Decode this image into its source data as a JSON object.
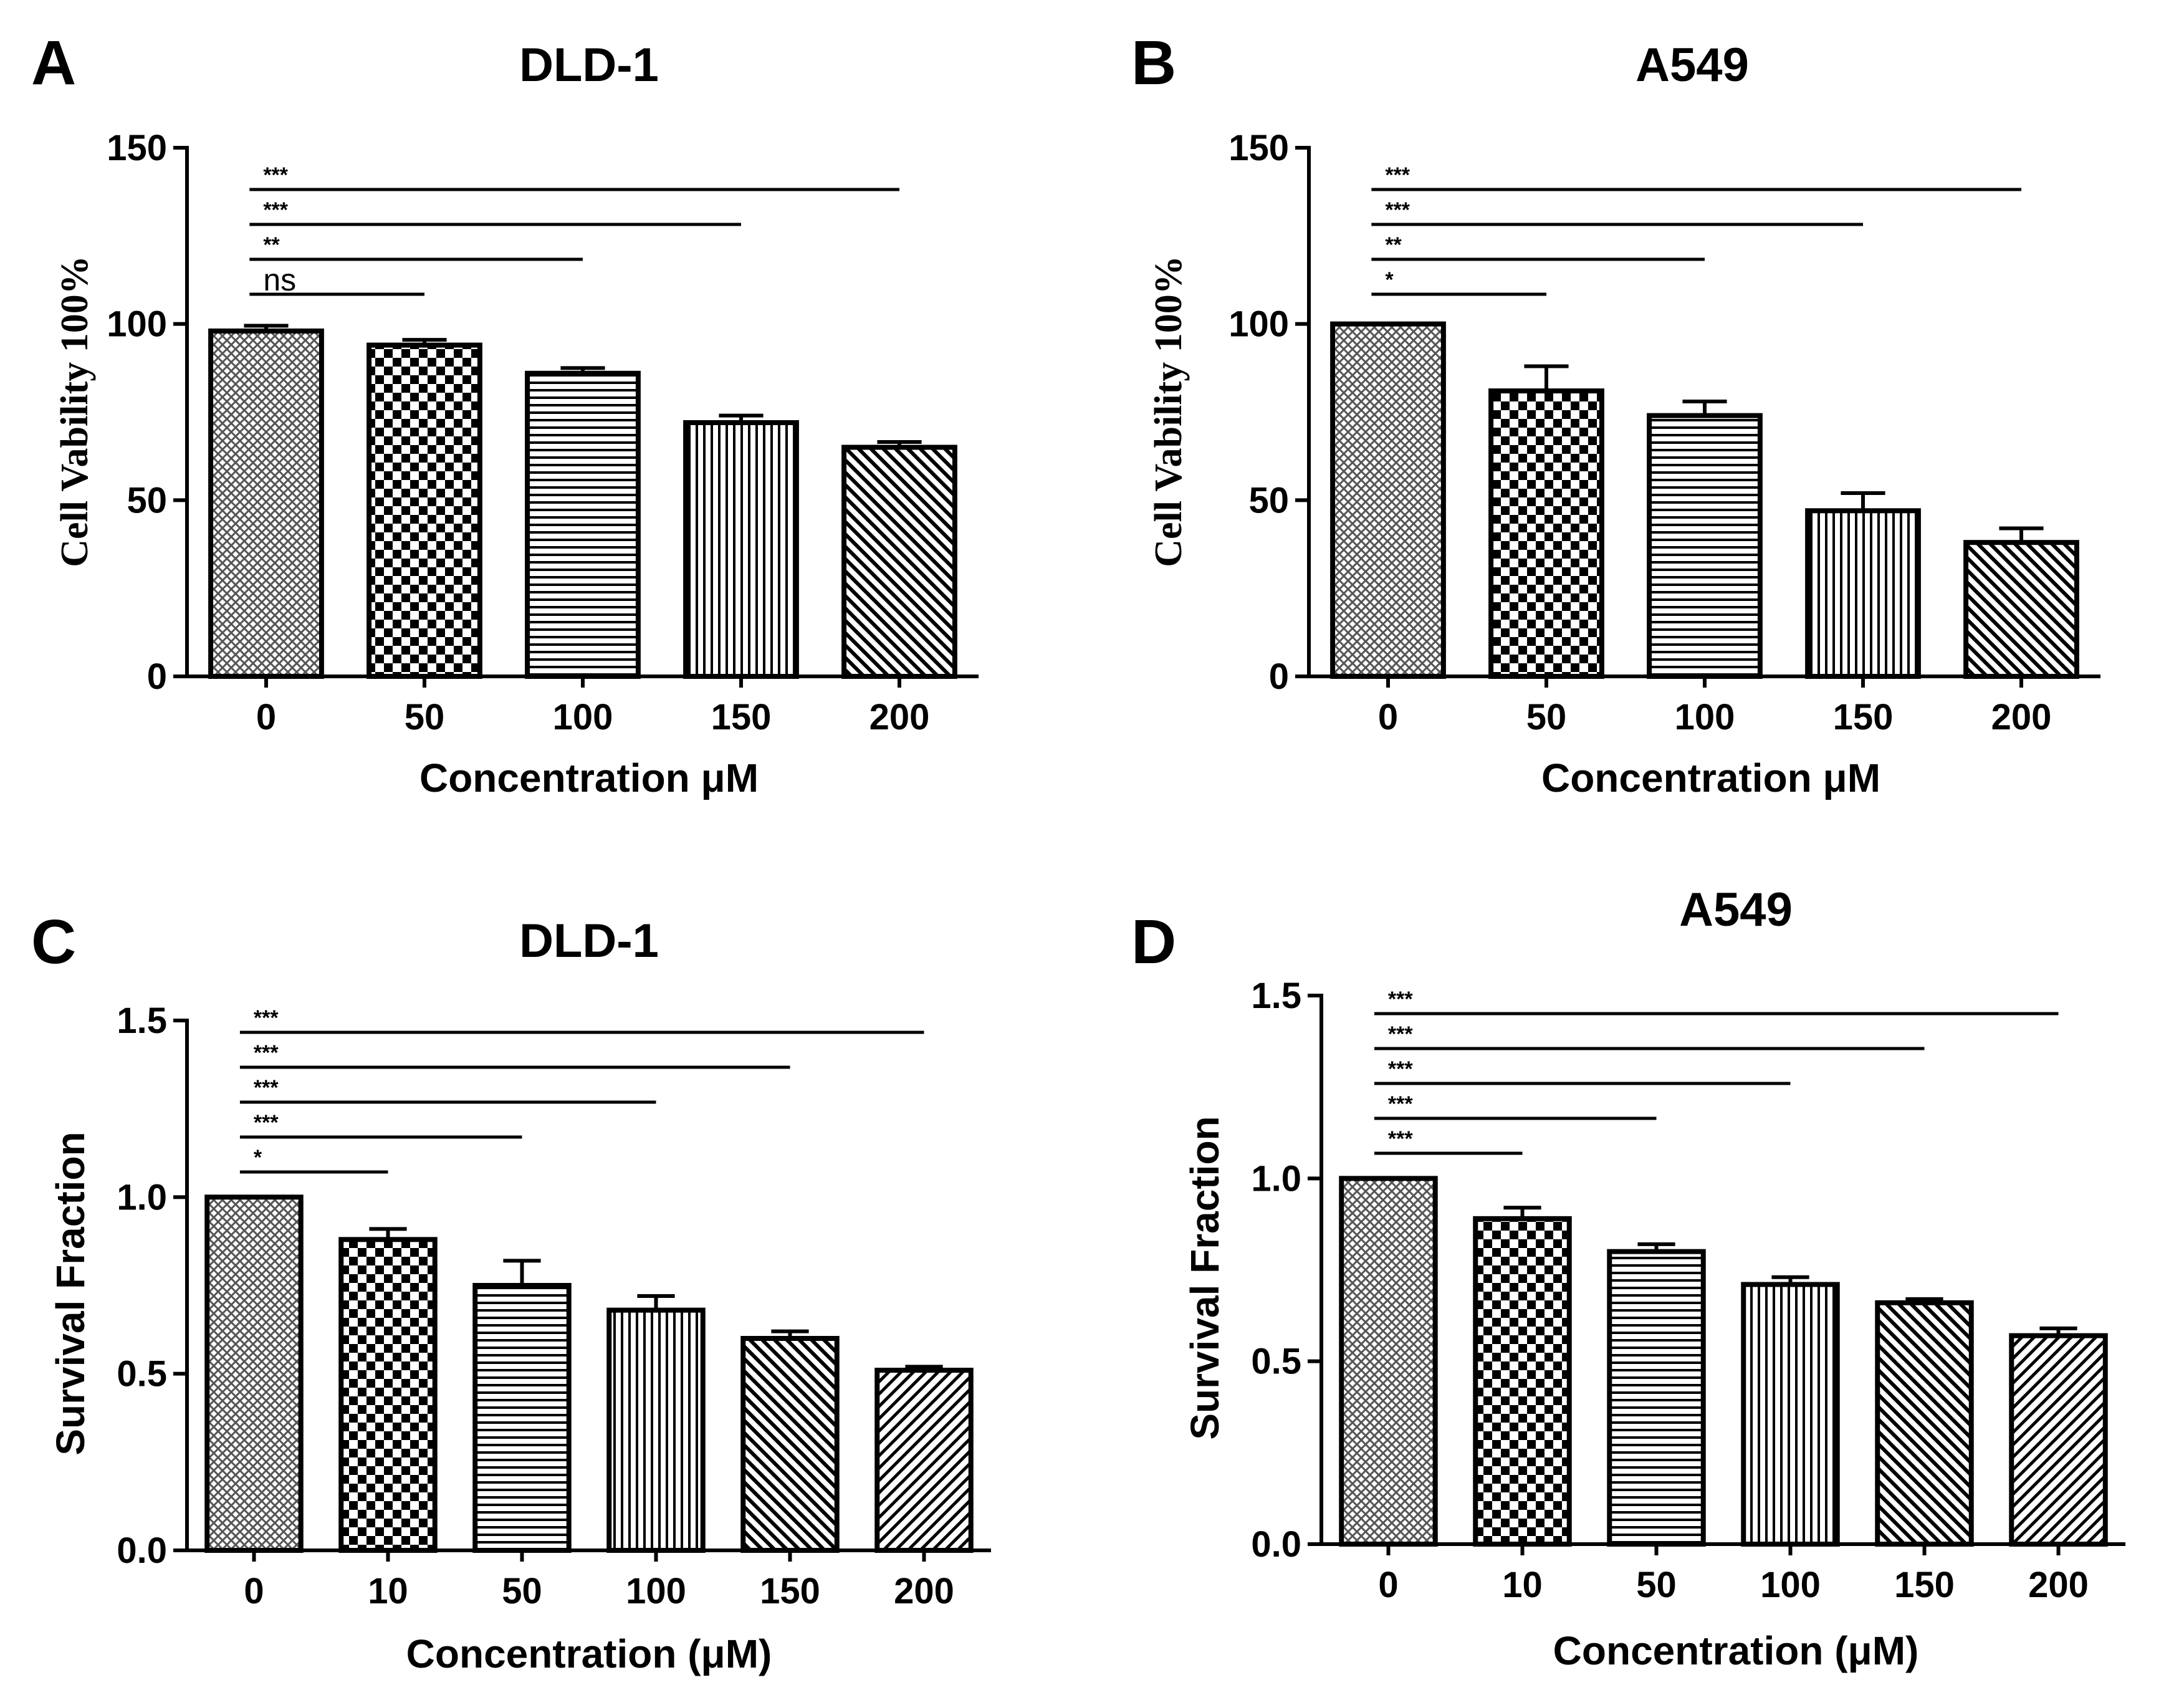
{
  "chart_data": [
    {
      "panel": "A",
      "type": "bar",
      "title": "DLD-1",
      "xlabel": "Concentration μM",
      "ylabel": "Cell Vability 100%",
      "ylim": [
        0,
        150
      ],
      "yticks": [
        "0",
        "50",
        "100",
        "150"
      ],
      "categories": [
        "0",
        "50",
        "100",
        "150",
        "200"
      ],
      "values": [
        98,
        94,
        86,
        72,
        65
      ],
      "errors": [
        1.5,
        1.5,
        1.5,
        2,
        1.5
      ],
      "patterns": [
        "crosshatch",
        "checker",
        "hlines",
        "vlines",
        "diagonal"
      ],
      "significance": [
        {
          "label": "ns",
          "to": "50"
        },
        {
          "label": "**",
          "to": "100"
        },
        {
          "label": "***",
          "to": "150"
        },
        {
          "label": "***",
          "to": "200"
        }
      ]
    },
    {
      "panel": "B",
      "type": "bar",
      "title": "A549",
      "xlabel": "Concentration μM",
      "ylabel": "Cell Vability 100%",
      "ylim": [
        0,
        150
      ],
      "yticks": [
        "0",
        "50",
        "100",
        "150"
      ],
      "categories": [
        "0",
        "50",
        "100",
        "150",
        "200"
      ],
      "values": [
        100,
        81,
        74,
        47,
        38
      ],
      "errors": [
        0,
        7,
        4,
        5,
        4
      ],
      "patterns": [
        "crosshatch",
        "checker",
        "hlines",
        "vlines",
        "diagonal"
      ],
      "significance": [
        {
          "label": "*",
          "to": "50"
        },
        {
          "label": "**",
          "to": "100"
        },
        {
          "label": "***",
          "to": "150"
        },
        {
          "label": "***",
          "to": "200"
        }
      ]
    },
    {
      "panel": "C",
      "type": "bar",
      "title": "DLD-1",
      "xlabel": "Concentration (μM)",
      "ylabel": "Survival Fraction",
      "ylim": [
        0,
        1.5
      ],
      "yticks": [
        "0.0",
        "0.5",
        "1.0",
        "1.5"
      ],
      "categories": [
        "0",
        "10",
        "50",
        "100",
        "150",
        "200"
      ],
      "values": [
        1.0,
        0.88,
        0.75,
        0.68,
        0.6,
        0.51
      ],
      "errors": [
        0,
        0.03,
        0.07,
        0.04,
        0.02,
        0.01
      ],
      "patterns": [
        "crosshatch",
        "checker",
        "hlines",
        "vlines",
        "diagonal",
        "diagonal2"
      ],
      "significance": [
        {
          "label": "*",
          "to": "10"
        },
        {
          "label": "***",
          "to": "50"
        },
        {
          "label": "***",
          "to": "100"
        },
        {
          "label": "***",
          "to": "150"
        },
        {
          "label": "***",
          "to": "200"
        }
      ]
    },
    {
      "panel": "D",
      "type": "bar",
      "title": "A549",
      "xlabel": "Concentration (μM)",
      "ylabel": "Survival Fraction",
      "ylim": [
        0,
        1.5
      ],
      "yticks": [
        "0.0",
        "0.5",
        "1.0",
        "1.5"
      ],
      "categories": [
        "0",
        "10",
        "50",
        "100",
        "150",
        "200"
      ],
      "values": [
        1.0,
        0.89,
        0.8,
        0.71,
        0.66,
        0.57
      ],
      "errors": [
        0,
        0.03,
        0.02,
        0.02,
        0.01,
        0.02
      ],
      "patterns": [
        "crosshatch",
        "checker",
        "hlines",
        "vlines",
        "diagonal",
        "diagonal2"
      ],
      "significance": [
        {
          "label": "***",
          "to": "10"
        },
        {
          "label": "***",
          "to": "50"
        },
        {
          "label": "***",
          "to": "100"
        },
        {
          "label": "***",
          "to": "150"
        },
        {
          "label": "***",
          "to": "200"
        }
      ]
    }
  ]
}
